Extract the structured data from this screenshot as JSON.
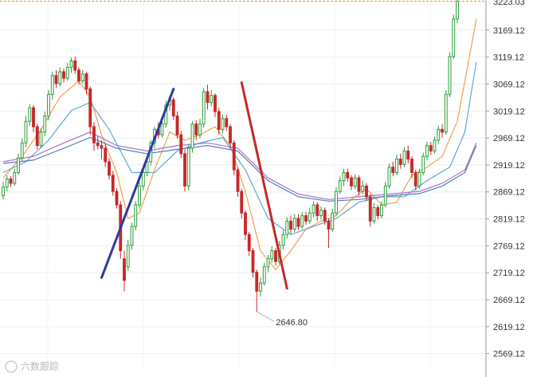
{
  "chart_data": {
    "type": "candlestick",
    "title": "",
    "xlabel": "",
    "ylabel": "",
    "ylim": [
      2545,
      3225
    ],
    "y_ticks": [
      "3169.12",
      "3119.12",
      "3069.12",
      "3019.12",
      "2969.12",
      "2919.12",
      "2869.12",
      "2819.12",
      "2769.12",
      "2719.12",
      "2669.12",
      "2619.12",
      "2569.12"
    ],
    "top_price_label": "3223.03",
    "low_annotation": {
      "value": 2646.8,
      "label": "2646.80"
    },
    "grid": true,
    "up_color": "#2a9d3a",
    "down_color": "#c62828",
    "ma_colors": [
      "#f0a050",
      "#5aa8d8",
      "#b070c0",
      "#4a7fc0"
    ],
    "candles": [
      {
        "o": 2862,
        "c": 2878,
        "h": 2888,
        "l": 2855
      },
      {
        "o": 2878,
        "c": 2893,
        "h": 2900,
        "l": 2870
      },
      {
        "o": 2893,
        "c": 2885,
        "h": 2898,
        "l": 2878
      },
      {
        "o": 2885,
        "c": 2905,
        "h": 2912,
        "l": 2880
      },
      {
        "o": 2905,
        "c": 2932,
        "h": 2940,
        "l": 2900
      },
      {
        "o": 2932,
        "c": 2960,
        "h": 2968,
        "l": 2925
      },
      {
        "o": 2960,
        "c": 3000,
        "h": 3010,
        "l": 2952
      },
      {
        "o": 3000,
        "c": 3025,
        "h": 3032,
        "l": 2992
      },
      {
        "o": 3025,
        "c": 2990,
        "h": 3030,
        "l": 2980
      },
      {
        "o": 2990,
        "c": 2955,
        "h": 2995,
        "l": 2948
      },
      {
        "o": 2955,
        "c": 2980,
        "h": 2988,
        "l": 2950
      },
      {
        "o": 2980,
        "c": 3010,
        "h": 3018,
        "l": 2972
      },
      {
        "o": 3010,
        "c": 3050,
        "h": 3058,
        "l": 3002
      },
      {
        "o": 3050,
        "c": 3085,
        "h": 3092,
        "l": 3040
      },
      {
        "o": 3085,
        "c": 3070,
        "h": 3095,
        "l": 3062
      },
      {
        "o": 3070,
        "c": 3092,
        "h": 3100,
        "l": 3065
      },
      {
        "o": 3092,
        "c": 3080,
        "h": 3098,
        "l": 3072
      },
      {
        "o": 3080,
        "c": 3100,
        "h": 3108,
        "l": 3075
      },
      {
        "o": 3100,
        "c": 3112,
        "h": 3118,
        "l": 3090
      },
      {
        "o": 3112,
        "c": 3095,
        "h": 3120,
        "l": 3088
      },
      {
        "o": 3095,
        "c": 3075,
        "h": 3100,
        "l": 3068
      },
      {
        "o": 3075,
        "c": 3088,
        "h": 3095,
        "l": 3070
      },
      {
        "o": 3088,
        "c": 3060,
        "h": 3092,
        "l": 3050
      },
      {
        "o": 3060,
        "c": 2990,
        "h": 3065,
        "l": 2975
      },
      {
        "o": 2990,
        "c": 2960,
        "h": 2998,
        "l": 2945
      },
      {
        "o": 2960,
        "c": 2955,
        "h": 2972,
        "l": 2948
      },
      {
        "o": 2955,
        "c": 2950,
        "h": 2965,
        "l": 2930
      },
      {
        "o": 2950,
        "c": 2925,
        "h": 2958,
        "l": 2915
      },
      {
        "o": 2925,
        "c": 2900,
        "h": 2932,
        "l": 2892
      },
      {
        "o": 2900,
        "c": 2870,
        "h": 2908,
        "l": 2862
      },
      {
        "o": 2870,
        "c": 2845,
        "h": 2876,
        "l": 2838
      },
      {
        "o": 2845,
        "c": 2760,
        "h": 2852,
        "l": 2745
      },
      {
        "o": 2745,
        "c": 2705,
        "h": 2760,
        "l": 2685
      },
      {
        "o": 2730,
        "c": 2770,
        "h": 2780,
        "l": 2722
      },
      {
        "o": 2770,
        "c": 2805,
        "h": 2812,
        "l": 2762
      },
      {
        "o": 2805,
        "c": 2845,
        "h": 2852,
        "l": 2798
      },
      {
        "o": 2845,
        "c": 2880,
        "h": 2888,
        "l": 2838
      },
      {
        "o": 2880,
        "c": 2905,
        "h": 2912,
        "l": 2872
      },
      {
        "o": 2905,
        "c": 2925,
        "h": 2932,
        "l": 2898
      },
      {
        "o": 2925,
        "c": 2960,
        "h": 2965,
        "l": 2918
      },
      {
        "o": 2960,
        "c": 2985,
        "h": 2990,
        "l": 2950
      },
      {
        "o": 2985,
        "c": 2975,
        "h": 2998,
        "l": 2968
      },
      {
        "o": 2975,
        "c": 2995,
        "h": 3005,
        "l": 2970
      },
      {
        "o": 2995,
        "c": 3030,
        "h": 3038,
        "l": 2988
      },
      {
        "o": 3030,
        "c": 3040,
        "h": 3048,
        "l": 3020
      },
      {
        "o": 3040,
        "c": 3010,
        "h": 3045,
        "l": 3002
      },
      {
        "o": 3010,
        "c": 2975,
        "h": 3018,
        "l": 2968
      },
      {
        "o": 2975,
        "c": 2940,
        "h": 2982,
        "l": 2932
      },
      {
        "o": 2940,
        "c": 2880,
        "h": 2948,
        "l": 2870
      },
      {
        "o": 2880,
        "c": 2950,
        "h": 2958,
        "l": 2872
      },
      {
        "o": 2950,
        "c": 2995,
        "h": 3000,
        "l": 2942
      },
      {
        "o": 2995,
        "c": 2975,
        "h": 3002,
        "l": 2965
      },
      {
        "o": 2975,
        "c": 2995,
        "h": 3005,
        "l": 2968
      },
      {
        "o": 2995,
        "c": 3055,
        "h": 3062,
        "l": 2988
      },
      {
        "o": 3055,
        "c": 3035,
        "h": 3068,
        "l": 3022
      },
      {
        "o": 3035,
        "c": 3048,
        "h": 3058,
        "l": 3028
      },
      {
        "o": 3048,
        "c": 3018,
        "h": 3052,
        "l": 3008
      },
      {
        "o": 3018,
        "c": 2985,
        "h": 3025,
        "l": 2975
      },
      {
        "o": 2985,
        "c": 3005,
        "h": 3012,
        "l": 2978
      },
      {
        "o": 3005,
        "c": 2990,
        "h": 3012,
        "l": 2982
      },
      {
        "o": 2990,
        "c": 2960,
        "h": 2995,
        "l": 2950
      },
      {
        "o": 2960,
        "c": 2910,
        "h": 2965,
        "l": 2900
      },
      {
        "o": 2910,
        "c": 2870,
        "h": 2915,
        "l": 2860
      },
      {
        "o": 2870,
        "c": 2830,
        "h": 2875,
        "l": 2820
      },
      {
        "o": 2830,
        "c": 2790,
        "h": 2835,
        "l": 2780
      },
      {
        "o": 2790,
        "c": 2760,
        "h": 2795,
        "l": 2750
      },
      {
        "o": 2760,
        "c": 2720,
        "h": 2765,
        "l": 2710
      },
      {
        "o": 2720,
        "c": 2685,
        "h": 2725,
        "l": 2646.8
      },
      {
        "o": 2685,
        "c": 2700,
        "h": 2710,
        "l": 2675
      },
      {
        "o": 2700,
        "c": 2730,
        "h": 2738,
        "l": 2695
      },
      {
        "o": 2730,
        "c": 2745,
        "h": 2752,
        "l": 2720
      },
      {
        "o": 2745,
        "c": 2760,
        "h": 2768,
        "l": 2738
      },
      {
        "o": 2760,
        "c": 2740,
        "h": 2765,
        "l": 2732
      },
      {
        "o": 2740,
        "c": 2770,
        "h": 2778,
        "l": 2735
      },
      {
        "o": 2770,
        "c": 2790,
        "h": 2798,
        "l": 2762
      },
      {
        "o": 2790,
        "c": 2815,
        "h": 2822,
        "l": 2782
      },
      {
        "o": 2815,
        "c": 2800,
        "h": 2825,
        "l": 2792
      },
      {
        "o": 2800,
        "c": 2820,
        "h": 2828,
        "l": 2795
      },
      {
        "o": 2820,
        "c": 2805,
        "h": 2828,
        "l": 2798
      },
      {
        "o": 2805,
        "c": 2825,
        "h": 2832,
        "l": 2800
      },
      {
        "o": 2825,
        "c": 2815,
        "h": 2832,
        "l": 2808
      },
      {
        "o": 2815,
        "c": 2830,
        "h": 2840,
        "l": 2810
      },
      {
        "o": 2830,
        "c": 2845,
        "h": 2852,
        "l": 2822
      },
      {
        "o": 2845,
        "c": 2825,
        "h": 2850,
        "l": 2815
      },
      {
        "o": 2825,
        "c": 2835,
        "h": 2842,
        "l": 2818
      },
      {
        "o": 2835,
        "c": 2815,
        "h": 2840,
        "l": 2808
      },
      {
        "o": 2815,
        "c": 2800,
        "h": 2820,
        "l": 2765
      },
      {
        "o": 2800,
        "c": 2830,
        "h": 2838,
        "l": 2795
      },
      {
        "o": 2830,
        "c": 2870,
        "h": 2878,
        "l": 2825
      },
      {
        "o": 2870,
        "c": 2890,
        "h": 2898,
        "l": 2865
      },
      {
        "o": 2890,
        "c": 2905,
        "h": 2912,
        "l": 2880
      },
      {
        "o": 2905,
        "c": 2895,
        "h": 2912,
        "l": 2888
      },
      {
        "o": 2895,
        "c": 2880,
        "h": 2900,
        "l": 2872
      },
      {
        "o": 2880,
        "c": 2895,
        "h": 2902,
        "l": 2874
      },
      {
        "o": 2895,
        "c": 2870,
        "h": 2900,
        "l": 2862
      },
      {
        "o": 2870,
        "c": 2880,
        "h": 2890,
        "l": 2865
      },
      {
        "o": 2880,
        "c": 2860,
        "h": 2885,
        "l": 2852
      },
      {
        "o": 2860,
        "c": 2815,
        "h": 2865,
        "l": 2805
      },
      {
        "o": 2815,
        "c": 2840,
        "h": 2848,
        "l": 2810
      },
      {
        "o": 2840,
        "c": 2825,
        "h": 2845,
        "l": 2818
      },
      {
        "o": 2825,
        "c": 2845,
        "h": 2852,
        "l": 2820
      },
      {
        "o": 2845,
        "c": 2880,
        "h": 2888,
        "l": 2840
      },
      {
        "o": 2880,
        "c": 2915,
        "h": 2922,
        "l": 2875
      },
      {
        "o": 2915,
        "c": 2905,
        "h": 2925,
        "l": 2898
      },
      {
        "o": 2905,
        "c": 2930,
        "h": 2938,
        "l": 2900
      },
      {
        "o": 2930,
        "c": 2920,
        "h": 2940,
        "l": 2912
      },
      {
        "o": 2920,
        "c": 2945,
        "h": 2952,
        "l": 2915
      },
      {
        "o": 2945,
        "c": 2930,
        "h": 2955,
        "l": 2922
      },
      {
        "o": 2930,
        "c": 2905,
        "h": 2935,
        "l": 2895
      },
      {
        "o": 2905,
        "c": 2880,
        "h": 2910,
        "l": 2872
      },
      {
        "o": 2880,
        "c": 2905,
        "h": 2912,
        "l": 2875
      },
      {
        "o": 2905,
        "c": 2935,
        "h": 2942,
        "l": 2900
      },
      {
        "o": 2935,
        "c": 2955,
        "h": 2962,
        "l": 2928
      },
      {
        "o": 2955,
        "c": 2945,
        "h": 2962,
        "l": 2938
      },
      {
        "o": 2945,
        "c": 2965,
        "h": 2972,
        "l": 2940
      },
      {
        "o": 2965,
        "c": 2985,
        "h": 2992,
        "l": 2958
      },
      {
        "o": 2985,
        "c": 2980,
        "h": 2995,
        "l": 2970
      },
      {
        "o": 2980,
        "c": 3050,
        "h": 3058,
        "l": 2975
      },
      {
        "o": 3050,
        "c": 3120,
        "h": 3128,
        "l": 3045
      },
      {
        "o": 3120,
        "c": 3190,
        "h": 3198,
        "l": 3115
      },
      {
        "o": 3190,
        "c": 3223,
        "h": 3240,
        "l": 3182
      }
    ],
    "ma_lines": [
      {
        "name": "",
        "color": "#f0a050",
        "points": [
          [
            0,
            2895
          ],
          [
            5,
            2935
          ],
          [
            10,
            2985
          ],
          [
            15,
            3045
          ],
          [
            20,
            3075
          ],
          [
            23,
            3045
          ],
          [
            26,
            2975
          ],
          [
            30,
            2905
          ],
          [
            33,
            2820
          ],
          [
            36,
            2830
          ],
          [
            40,
            2910
          ],
          [
            44,
            2980
          ],
          [
            48,
            2965
          ],
          [
            52,
            2975
          ],
          [
            56,
            2990
          ],
          [
            60,
            2955
          ],
          [
            64,
            2870
          ],
          [
            68,
            2760
          ],
          [
            72,
            2725
          ],
          [
            76,
            2760
          ],
          [
            80,
            2800
          ],
          [
            84,
            2815
          ],
          [
            88,
            2825
          ],
          [
            92,
            2855
          ],
          [
            96,
            2875
          ],
          [
            100,
            2845
          ],
          [
            104,
            2850
          ],
          [
            108,
            2900
          ],
          [
            112,
            2915
          ],
          [
            116,
            2935
          ],
          [
            120,
            3000
          ],
          [
            124,
            3150
          ],
          [
            125,
            3190
          ]
        ]
      },
      {
        "name": "",
        "color": "#5aa8d8",
        "points": [
          [
            0,
            2905
          ],
          [
            6,
            2925
          ],
          [
            12,
            2965
          ],
          [
            18,
            3020
          ],
          [
            23,
            3035
          ],
          [
            28,
            2985
          ],
          [
            34,
            2905
          ],
          [
            40,
            2905
          ],
          [
            46,
            2945
          ],
          [
            52,
            2960
          ],
          [
            58,
            2970
          ],
          [
            64,
            2910
          ],
          [
            70,
            2820
          ],
          [
            76,
            2790
          ],
          [
            82,
            2805
          ],
          [
            88,
            2820
          ],
          [
            94,
            2850
          ],
          [
            100,
            2860
          ],
          [
            106,
            2860
          ],
          [
            112,
            2890
          ],
          [
            118,
            2915
          ],
          [
            122,
            2980
          ],
          [
            125,
            3110
          ]
        ]
      },
      {
        "name": "",
        "color": "#b070c0",
        "points": [
          [
            0,
            2925
          ],
          [
            8,
            2935
          ],
          [
            16,
            2960
          ],
          [
            23,
            2980
          ],
          [
            30,
            2955
          ],
          [
            38,
            2945
          ],
          [
            46,
            2955
          ],
          [
            54,
            2960
          ],
          [
            62,
            2950
          ],
          [
            70,
            2895
          ],
          [
            78,
            2865
          ],
          [
            86,
            2855
          ],
          [
            94,
            2860
          ],
          [
            102,
            2865
          ],
          [
            110,
            2870
          ],
          [
            116,
            2885
          ],
          [
            122,
            2910
          ],
          [
            125,
            2960
          ]
        ]
      },
      {
        "name": "",
        "color": "#4a7fc0",
        "points": [
          [
            0,
            2922
          ],
          [
            8,
            2928
          ],
          [
            16,
            2950
          ],
          [
            23,
            2970
          ],
          [
            30,
            2950
          ],
          [
            38,
            2940
          ],
          [
            46,
            2948
          ],
          [
            54,
            2955
          ],
          [
            62,
            2945
          ],
          [
            70,
            2890
          ],
          [
            78,
            2860
          ],
          [
            86,
            2852
          ],
          [
            94,
            2855
          ],
          [
            102,
            2862
          ],
          [
            110,
            2866
          ],
          [
            116,
            2880
          ],
          [
            122,
            2905
          ],
          [
            125,
            2955
          ]
        ]
      }
    ],
    "trend_lines": [
      {
        "color": "#2b3a9e",
        "from": [
          26,
          2710
        ],
        "to": [
          45,
          3060
        ]
      },
      {
        "color": "#c62828",
        "from": [
          63,
          3072
        ],
        "to": [
          75,
          2690
        ]
      }
    ]
  },
  "watermark": {
    "text": "六数跟踪"
  }
}
